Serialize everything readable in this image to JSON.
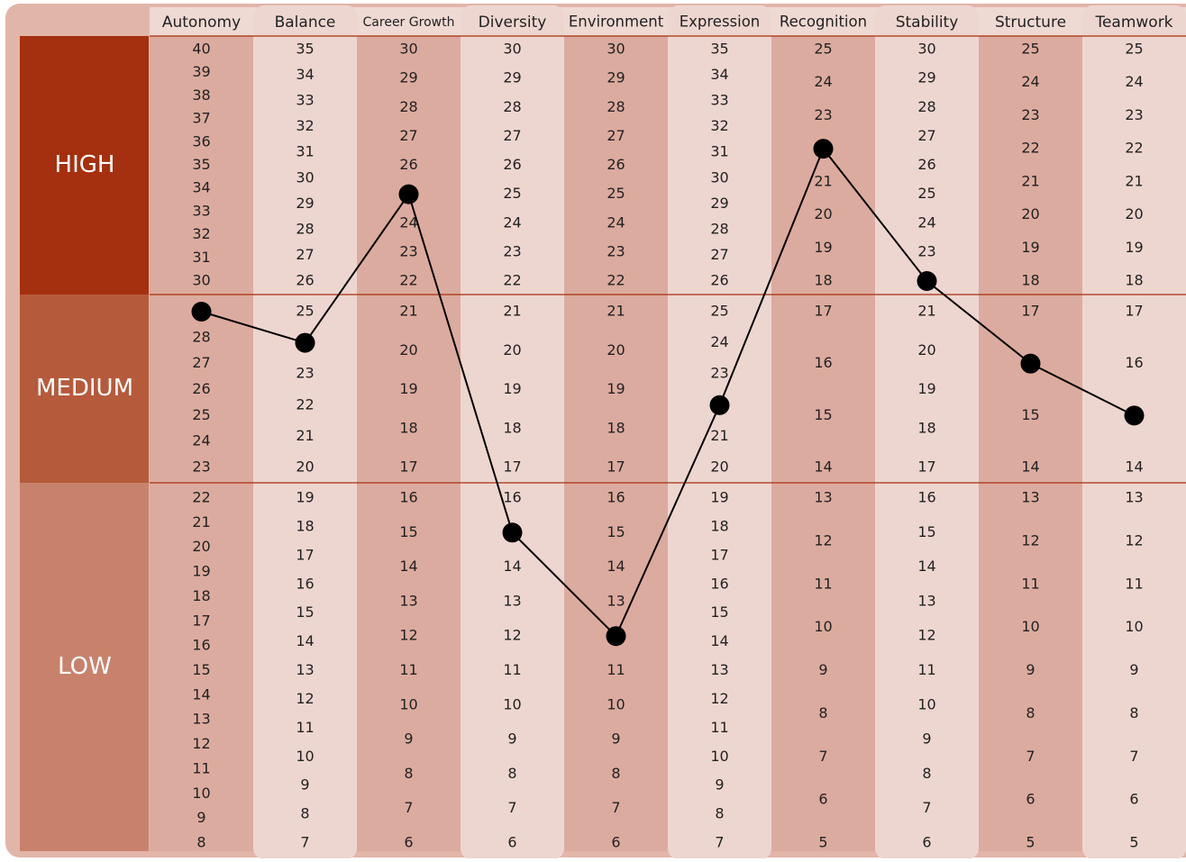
{
  "chart_data": {
    "type": "profile",
    "bands": [
      "HIGH",
      "MEDIUM",
      "LOW"
    ],
    "band_colors": [
      "#a5300f",
      "#b65a3c",
      "#c8826c"
    ],
    "line_color": "#000000",
    "columns": [
      {
        "name": "Autonomy",
        "score": 29,
        "scale": [
          [
            40,
            39,
            38,
            37,
            36,
            35,
            34,
            33,
            32,
            31,
            30
          ],
          [
            29,
            28,
            27,
            26,
            25,
            24,
            23
          ],
          [
            22,
            21,
            20,
            19,
            18,
            17,
            16,
            15,
            14,
            13,
            12,
            11,
            10,
            9,
            8
          ]
        ]
      },
      {
        "name": "Balance",
        "score": 24,
        "scale": [
          [
            35,
            34,
            33,
            32,
            31,
            30,
            29,
            28,
            27,
            26
          ],
          [
            25,
            24,
            23,
            22,
            21,
            20
          ],
          [
            19,
            18,
            17,
            16,
            15,
            14,
            13,
            12,
            11,
            10,
            9,
            8,
            7
          ]
        ]
      },
      {
        "name": "Career Growth",
        "score": 25,
        "scale": [
          [
            30,
            29,
            28,
            27,
            26,
            25,
            24,
            23,
            22
          ],
          [
            21,
            20,
            19,
            18,
            17
          ],
          [
            16,
            15,
            14,
            13,
            12,
            11,
            10,
            9,
            8,
            7,
            6
          ]
        ]
      },
      {
        "name": "Diversity",
        "score": 15,
        "scale": [
          [
            30,
            29,
            28,
            27,
            26,
            25,
            24,
            23,
            22
          ],
          [
            21,
            20,
            19,
            18,
            17
          ],
          [
            16,
            15,
            14,
            13,
            12,
            11,
            10,
            9,
            8,
            7,
            6
          ]
        ]
      },
      {
        "name": "Environment",
        "score": 12,
        "scale": [
          [
            30,
            29,
            28,
            27,
            26,
            25,
            24,
            23,
            22
          ],
          [
            21,
            20,
            19,
            18,
            17
          ],
          [
            16,
            15,
            14,
            13,
            12,
            11,
            10,
            9,
            8,
            7,
            6
          ]
        ]
      },
      {
        "name": "Expression",
        "score": 22,
        "scale": [
          [
            35,
            34,
            33,
            32,
            31,
            30,
            29,
            28,
            27,
            26
          ],
          [
            25,
            24,
            23,
            22,
            21,
            20
          ],
          [
            19,
            18,
            17,
            16,
            15,
            14,
            13,
            12,
            11,
            10,
            9,
            8,
            7
          ]
        ]
      },
      {
        "name": "Recognition",
        "score": 22,
        "scale": [
          [
            25,
            24,
            23,
            22,
            21,
            20,
            19,
            18
          ],
          [
            17,
            16,
            15,
            14
          ],
          [
            13,
            12,
            11,
            10,
            9,
            8,
            7,
            6,
            5
          ]
        ]
      },
      {
        "name": "Stability",
        "score": 22,
        "scale": [
          [
            30,
            29,
            28,
            27,
            26,
            25,
            24,
            23,
            22
          ],
          [
            21,
            20,
            19,
            18,
            17
          ],
          [
            16,
            15,
            14,
            13,
            12,
            11,
            10,
            9,
            8,
            7,
            6
          ]
        ]
      },
      {
        "name": "Structure",
        "score": 16,
        "scale": [
          [
            25,
            24,
            23,
            22,
            21,
            20,
            19,
            18
          ],
          [
            17,
            16,
            15,
            14
          ],
          [
            13,
            12,
            11,
            10,
            9,
            8,
            7,
            6,
            5
          ]
        ]
      },
      {
        "name": "Teamwork",
        "score": 15,
        "scale": [
          [
            25,
            24,
            23,
            22,
            21,
            20,
            19,
            18
          ],
          [
            17,
            16,
            15,
            14
          ],
          [
            13,
            12,
            11,
            10,
            9,
            8,
            7,
            6,
            5
          ]
        ]
      }
    ]
  }
}
